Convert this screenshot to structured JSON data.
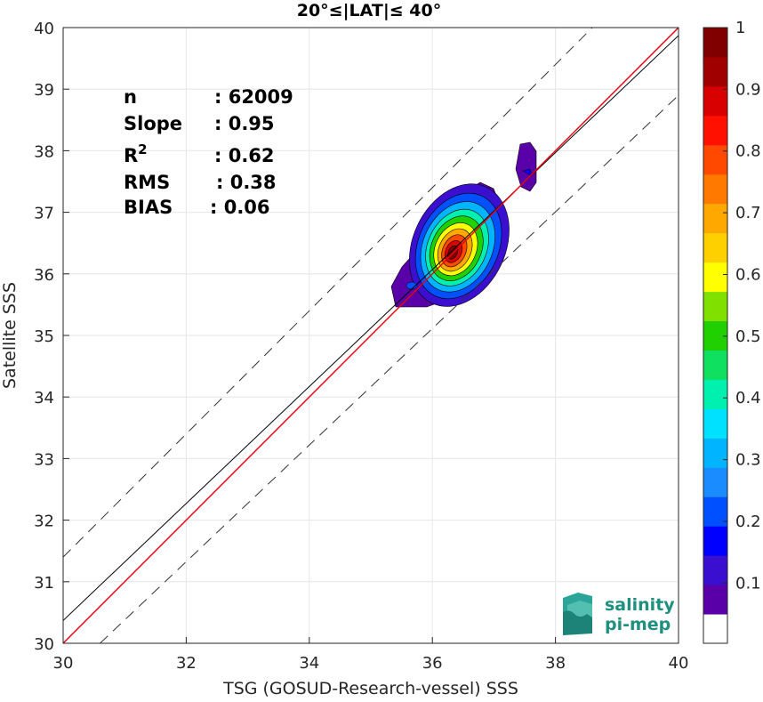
{
  "chart_data": {
    "type": "scatter",
    "subtype": "density-contour",
    "title": "20°≤|LAT|≤ 40°",
    "xlabel": "TSG (GOSUD-Research-vessel) SSS",
    "ylabel": "Satellite SSS",
    "xlim": [
      30,
      40
    ],
    "ylim": [
      30,
      40
    ],
    "xticks": [
      30,
      32,
      34,
      36,
      38,
      40
    ],
    "yticks": [
      30,
      31,
      32,
      33,
      34,
      35,
      36,
      37,
      38,
      39,
      40
    ],
    "grid": true,
    "stats": [
      {
        "label": "n",
        "value": ": 62009"
      },
      {
        "label": "Slope",
        "value": ": 0.95"
      },
      {
        "label": "R",
        "sup": "2",
        "value": ": 0.62"
      },
      {
        "label": "RMS",
        "value": ": 0.38"
      },
      {
        "label": "BIAS",
        "value": ": 0.06"
      }
    ],
    "lines": [
      {
        "role": "identity",
        "color": "#000000",
        "slope": 1,
        "intercept": 0,
        "style": "dashed-offset"
      },
      {
        "role": "regression",
        "color": "#e8000b",
        "slope": 1,
        "intercept": 0
      },
      {
        "role": "fit",
        "color": "#000000",
        "slope": 0.95,
        "intercept": 1.87
      }
    ],
    "density_peak": {
      "x": 36.35,
      "y": 36.35
    },
    "colorbar": {
      "ticks": [
        "0.1",
        "0.2",
        "0.3",
        "0.4",
        "0.5",
        "0.6",
        "0.7",
        "0.8",
        "0.9",
        "1"
      ],
      "range": [
        0,
        1
      ],
      "colors": [
        "#ffffff",
        "#5a00a8",
        "#3b0fd0",
        "#0000ff",
        "#0050ff",
        "#1b8cff",
        "#00b4ff",
        "#00e0ff",
        "#00f0b0",
        "#10e060",
        "#20d000",
        "#80e000",
        "#ffff00",
        "#ffd000",
        "#ffa800",
        "#ff7800",
        "#ff4800",
        "#ff1000",
        "#d80000",
        "#a00000",
        "#800000"
      ]
    }
  },
  "logo": {
    "line1": "salinity",
    "line2": "pi-mep"
  }
}
